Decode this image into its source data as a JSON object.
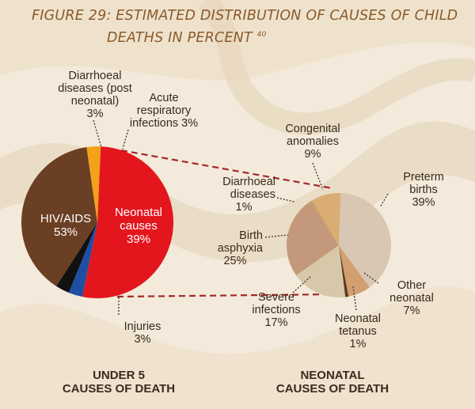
{
  "figure": {
    "title_line1": "FIGURE 29: ESTIMATED DISTRIBUTION OF CAUSES OF CHILD",
    "title_line2": "DEATHS IN PERCENT",
    "footnote_ref": "40"
  },
  "chart_data": [
    {
      "type": "pie",
      "caption_line1": "UNDER 5",
      "caption_line2": "CAUSES OF DEATH",
      "slices": [
        {
          "label": "HIV/AIDS",
          "value": 53,
          "value_text": "53%",
          "color": "#e3161e"
        },
        {
          "label": "Diarrhoeal diseases (post neonatal)",
          "value": 3,
          "value_text": "3%",
          "color": "#1f4ea3"
        },
        {
          "label": "Acute respiratory infections",
          "value": 3,
          "value_text": "3%",
          "color": "#111111"
        },
        {
          "label": "Neonatal causes",
          "value": 39,
          "value_text": "39%",
          "color": "#6b3f24"
        },
        {
          "label": "Injuries",
          "value": 3,
          "value_text": "3%",
          "color": "#f4a21a"
        }
      ],
      "labels": {
        "hiv_l1": "HIV/AIDS",
        "hiv_l2": "53%",
        "diar_l1": "Diarrhoeal",
        "diar_l2": "diseases (post",
        "diar_l3": "neonatal)",
        "diar_l4": "3%",
        "ari_l1": "Acute",
        "ari_l2": "respiratory",
        "ari_l3": "infections 3%",
        "neo_l1": "Neonatal",
        "neo_l2": "causes",
        "neo_l3": "39%",
        "inj_l1": "Injuries",
        "inj_l2": "3%"
      }
    },
    {
      "type": "pie",
      "caption_line1": "NEONATAL",
      "caption_line2": "CAUSES OF DEATH",
      "slices": [
        {
          "label": "Preterm births",
          "value": 39,
          "value_text": "39%",
          "color": "#d8c7b3"
        },
        {
          "label": "Other neonatal",
          "value": 7,
          "value_text": "7%",
          "color": "#d2a070"
        },
        {
          "label": "Neonatal tetanus",
          "value": 1,
          "value_text": "1%",
          "color": "#5e3a1e"
        },
        {
          "label": "Severe infections",
          "value": 17,
          "value_text": "17%",
          "color": "#d6c8a8"
        },
        {
          "label": "Birth asphyxia",
          "value": 25,
          "value_text": "25%",
          "color": "#c4987a"
        },
        {
          "label": "Diarrhoeal diseases",
          "value": 1,
          "value_text": "1%",
          "color": "#c89c6c"
        },
        {
          "label": "Congenital anomalies",
          "value": 9,
          "value_text": "9%",
          "color": "#d9ad74"
        }
      ],
      "labels": {
        "cong_l1": "Congenital",
        "cong_l2": "anomalies",
        "cong_l3": "9%",
        "pre_l1": "Preterm",
        "pre_l2": "births",
        "pre_l3": "39%",
        "diar_l1": "Diarrhoeal",
        "diar_l2": "diseases",
        "diar_l3": "1%",
        "asph_l1": "Birth",
        "asph_l2": "asphyxia",
        "asph_l3": "25%",
        "oth_l1": "Other",
        "oth_l2": "neonatal",
        "oth_l3": "7%",
        "sev_l1": "Severe",
        "sev_l2": "infections",
        "sev_l3": "17%",
        "tet_l1": "Neonatal",
        "tet_l2": "tetanus",
        "tet_l3": "1%"
      }
    }
  ]
}
